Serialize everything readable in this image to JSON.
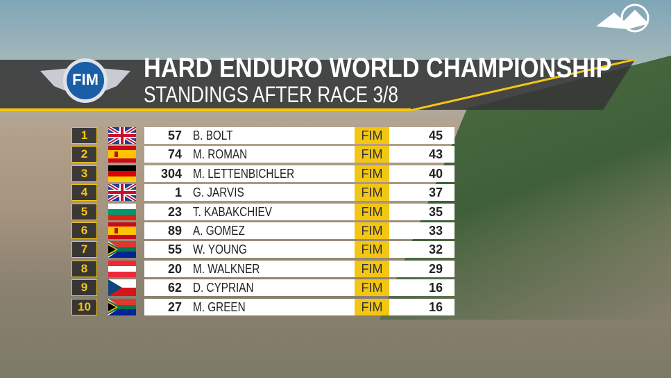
{
  "header": {
    "logo": "FIM",
    "title": "HARD ENDURO WORLD CHAMPIONSHIP",
    "subtitle": "STANDINGS AFTER RACE 3/8"
  },
  "table": {
    "rows": [
      {
        "position": 1,
        "number": 57,
        "name": "B. BOLT",
        "badge": "FIM",
        "points": 45
      },
      {
        "position": 2,
        "number": 74,
        "name": "M. ROMAN",
        "badge": "FIM",
        "points": 43
      },
      {
        "position": 3,
        "number": 304,
        "name": "M. LETTENBICHLER",
        "badge": "FIM",
        "points": 40
      },
      {
        "position": 4,
        "number": 1,
        "name": "G. JARVIS",
        "badge": "FIM",
        "points": 37
      },
      {
        "position": 5,
        "number": 23,
        "name": "T. KABAKCHIEV",
        "badge": "FIM",
        "points": 35
      },
      {
        "position": 6,
        "number": 89,
        "name": "A. GOMEZ",
        "badge": "FIM",
        "points": 33
      },
      {
        "position": 7,
        "number": 55,
        "name": "W. YOUNG",
        "badge": "FIM",
        "points": 32
      },
      {
        "position": 8,
        "number": 20,
        "name": "M. WALKNER",
        "badge": "FIM",
        "points": 29
      },
      {
        "position": 9,
        "number": 62,
        "name": "D. CYPRIAN",
        "badge": "FIM",
        "points": 16
      },
      {
        "position": 10,
        "number": 27,
        "name": "M. GREEN",
        "badge": "FIM",
        "points": 16
      }
    ]
  }
}
